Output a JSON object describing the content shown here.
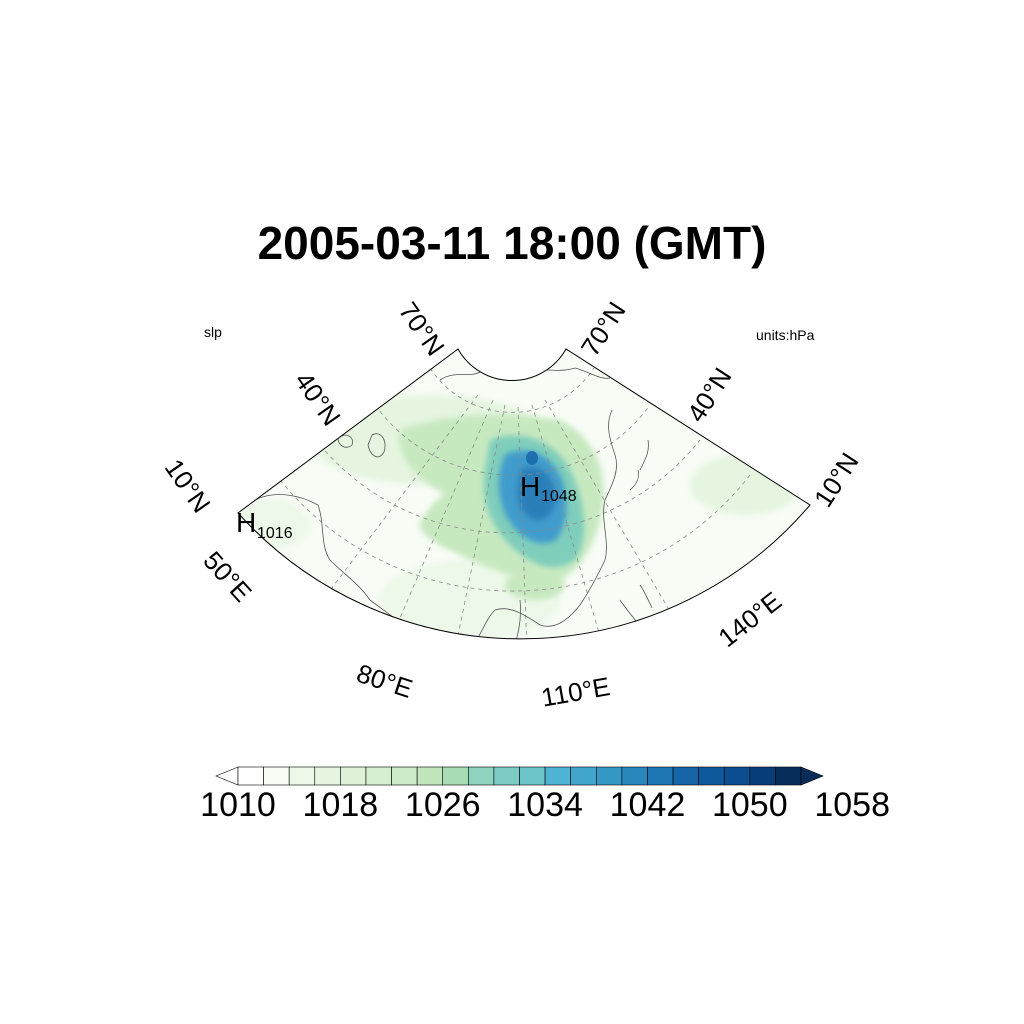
{
  "title": "2005-03-11 18:00 (GMT)",
  "variable_label": "slp",
  "units_label": "units:hPa",
  "lat_labels": {
    "left": [
      "70°N",
      "40°N",
      "10°N"
    ],
    "right": [
      "70°N",
      "40°N",
      "10°N"
    ]
  },
  "lon_labels": [
    "50°E",
    "80°E",
    "110°E",
    "140°E"
  ],
  "highs": [
    {
      "letter": "H",
      "value": "1048"
    },
    {
      "letter": "H",
      "value": "1016"
    }
  ],
  "colorbar": {
    "tick_labels": [
      "1010",
      "1018",
      "1026",
      "1034",
      "1042",
      "1050",
      "1058"
    ],
    "levels_start": 1010,
    "levels_step": 2,
    "colors": [
      "#ffffff",
      "#f7fcf5",
      "#edf8e9",
      "#e5f5e0",
      "#dff2d9",
      "#d6efd0",
      "#cdebc7",
      "#c2e6bb",
      "#a8dcb5",
      "#8fd2bd",
      "#7ccbc4",
      "#6cc3c8",
      "#4fb3d3",
      "#42a5cc",
      "#3597c4",
      "#2a87bc",
      "#1f76b4",
      "#1666a8",
      "#0e5a9c",
      "#0b4d8e",
      "#083d77",
      "#062d5a"
    ]
  },
  "colors": {
    "land_line": "#555555",
    "grid_line": "#888888"
  }
}
